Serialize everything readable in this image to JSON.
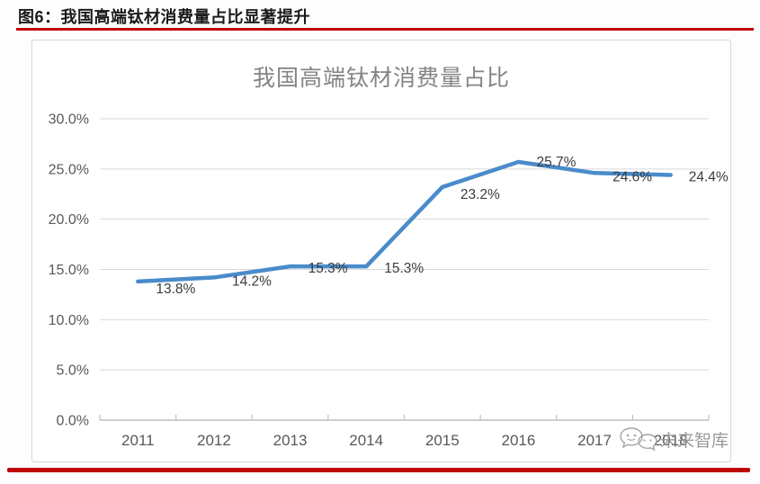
{
  "header": {
    "title": "图6：我国高端钛材消费量占比显著提升"
  },
  "watermark": {
    "text": "未来智库",
    "logo": "chat-bubbles-logo"
  },
  "colors": {
    "rule_red": "#c00000",
    "line_blue": "#4a8bcb",
    "grid_gray": "#d9d9d9",
    "axis_gray": "#bfbfbf",
    "tick_text_gray": "#595959",
    "data_label_dark": "#3b3b3b",
    "title_gray": "#848484"
  },
  "chart_data": {
    "type": "line",
    "title": "我国高端钛材消费量占比",
    "categories": [
      "2011",
      "2012",
      "2013",
      "2014",
      "2015",
      "2016",
      "2017",
      "2018"
    ],
    "values": [
      13.8,
      14.2,
      15.3,
      15.3,
      23.2,
      25.7,
      24.6,
      24.4
    ],
    "data_labels": [
      "13.8%",
      "14.2%",
      "15.3%",
      "15.3%",
      "23.2%",
      "25.7%",
      "24.6%",
      "24.4%"
    ],
    "y_ticks": [
      "30.0%",
      "25.0%",
      "20.0%",
      "15.0%",
      "10.0%",
      "5.0%",
      "0.0%"
    ],
    "ylim": [
      0,
      30
    ],
    "y_tick_step": 5,
    "xlabel": "",
    "ylabel": "",
    "grid": "horizontal",
    "legend": "none",
    "line_color": "#4a8bcb",
    "label_dy": [
      13,
      9,
      7,
      7,
      13,
      5,
      9,
      7
    ]
  }
}
